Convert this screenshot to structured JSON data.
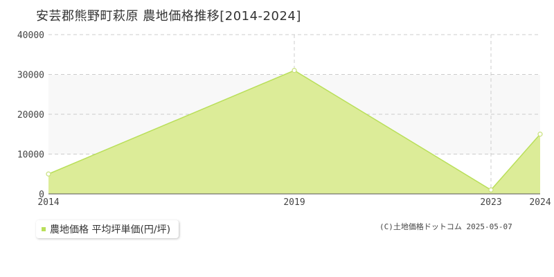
{
  "chart_data": {
    "type": "area",
    "title": "安芸郡熊野町萩原 農地価格推移[2014-2024]",
    "x": [
      2014,
      2019,
      2023,
      2024
    ],
    "x_tick_labels": [
      "2014",
      "2019",
      "2023",
      "2024"
    ],
    "y_tick_labels": [
      "0",
      "10000",
      "20000",
      "30000",
      "40000"
    ],
    "ylim": [
      0,
      40000
    ],
    "grid": true,
    "legend_position": "bottom-left",
    "series": [
      {
        "name": "農地価格 平均坪単価(円/坪)",
        "values": [
          5000,
          31000,
          1000,
          15000
        ]
      }
    ],
    "fill_color": "#dcec98",
    "line_color": "#b9df5a",
    "marker_color": "#c8e07a"
  },
  "copyright": "(C)土地価格ドットコム 2025-05-07"
}
